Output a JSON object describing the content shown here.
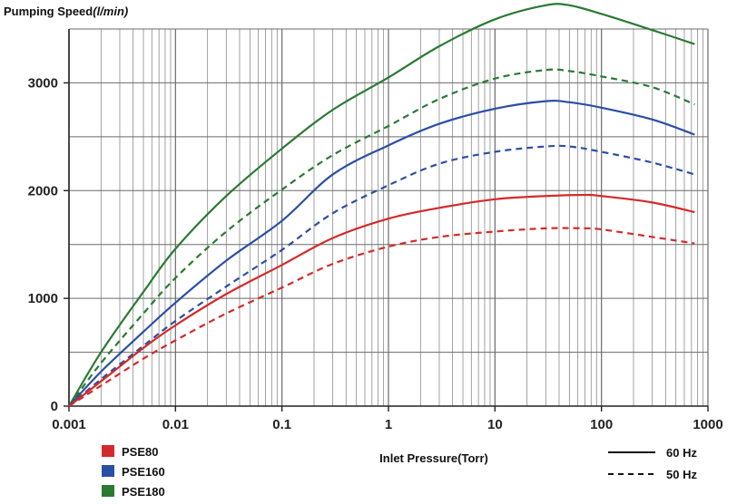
{
  "chart_data": {
    "type": "line",
    "ylabel": "Pumping Speed",
    "ylabel_unit": "(l/min)",
    "xlabel": "Inlet Pressure(Torr)",
    "x_scale": "log",
    "xlim": [
      0.001,
      1000
    ],
    "ylim": [
      0,
      3500
    ],
    "grid": true,
    "x_ticks": [
      {
        "value": 0.001,
        "label": "0.001"
      },
      {
        "value": 0.01,
        "label": "0.01"
      },
      {
        "value": 0.1,
        "label": "0.1"
      },
      {
        "value": 1,
        "label": "1"
      },
      {
        "value": 10,
        "label": "10"
      },
      {
        "value": 100,
        "label": "100"
      },
      {
        "value": 1000,
        "label": "1000"
      }
    ],
    "y_ticks": [
      {
        "value": 0,
        "label": "0"
      },
      {
        "value": 1000,
        "label": "1000"
      },
      {
        "value": 2000,
        "label": "2000"
      },
      {
        "value": 3000,
        "label": "3000"
      }
    ],
    "model_legend": [
      {
        "label": "PSE80",
        "color": "#d42a2a"
      },
      {
        "label": "PSE160",
        "color": "#2b4fa3"
      },
      {
        "label": "PSE180",
        "color": "#2a7a33"
      }
    ],
    "style_legend": [
      {
        "label": "60 Hz",
        "dash": "solid"
      },
      {
        "label": "50 Hz",
        "dash": "dashed"
      }
    ],
    "series": [
      {
        "model": "PSE180",
        "freq": "60 Hz",
        "color": "#2a7a33",
        "dash": "solid",
        "points": [
          [
            0.001,
            0
          ],
          [
            0.002,
            500
          ],
          [
            0.005,
            1060
          ],
          [
            0.01,
            1460
          ],
          [
            0.03,
            1950
          ],
          [
            0.1,
            2390
          ],
          [
            0.3,
            2750
          ],
          [
            1,
            3050
          ],
          [
            3,
            3340
          ],
          [
            10,
            3590
          ],
          [
            30,
            3720
          ],
          [
            50,
            3720
          ],
          [
            100,
            3640
          ],
          [
            300,
            3490
          ],
          [
            750,
            3360
          ]
        ]
      },
      {
        "model": "PSE180",
        "freq": "50 Hz",
        "color": "#2a7a33",
        "dash": "dashed",
        "points": [
          [
            0.001,
            0
          ],
          [
            0.002,
            400
          ],
          [
            0.005,
            860
          ],
          [
            0.01,
            1190
          ],
          [
            0.03,
            1620
          ],
          [
            0.1,
            2010
          ],
          [
            0.3,
            2330
          ],
          [
            1,
            2600
          ],
          [
            3,
            2850
          ],
          [
            10,
            3040
          ],
          [
            30,
            3120
          ],
          [
            50,
            3110
          ],
          [
            100,
            3060
          ],
          [
            300,
            2960
          ],
          [
            750,
            2800
          ]
        ]
      },
      {
        "model": "PSE160",
        "freq": "60 Hz",
        "color": "#2b4fa3",
        "dash": "solid",
        "points": [
          [
            0.001,
            0
          ],
          [
            0.002,
            320
          ],
          [
            0.005,
            690
          ],
          [
            0.01,
            960
          ],
          [
            0.03,
            1350
          ],
          [
            0.1,
            1720
          ],
          [
            0.3,
            2150
          ],
          [
            1,
            2420
          ],
          [
            3,
            2620
          ],
          [
            10,
            2760
          ],
          [
            30,
            2830
          ],
          [
            50,
            2820
          ],
          [
            100,
            2770
          ],
          [
            300,
            2660
          ],
          [
            750,
            2520
          ]
        ]
      },
      {
        "model": "PSE160",
        "freq": "50 Hz",
        "color": "#2b4fa3",
        "dash": "dashed",
        "points": [
          [
            0.001,
            0
          ],
          [
            0.002,
            250
          ],
          [
            0.005,
            560
          ],
          [
            0.01,
            790
          ],
          [
            0.03,
            1110
          ],
          [
            0.1,
            1450
          ],
          [
            0.3,
            1790
          ],
          [
            1,
            2050
          ],
          [
            3,
            2250
          ],
          [
            10,
            2360
          ],
          [
            30,
            2410
          ],
          [
            50,
            2410
          ],
          [
            100,
            2360
          ],
          [
            300,
            2260
          ],
          [
            750,
            2150
          ]
        ]
      },
      {
        "model": "PSE80",
        "freq": "60 Hz",
        "color": "#d42a2a",
        "dash": "solid",
        "points": [
          [
            0.001,
            0
          ],
          [
            0.002,
            230
          ],
          [
            0.005,
            540
          ],
          [
            0.01,
            750
          ],
          [
            0.03,
            1040
          ],
          [
            0.1,
            1310
          ],
          [
            0.3,
            1560
          ],
          [
            1,
            1740
          ],
          [
            3,
            1840
          ],
          [
            10,
            1920
          ],
          [
            30,
            1950
          ],
          [
            70,
            1960
          ],
          [
            100,
            1950
          ],
          [
            300,
            1890
          ],
          [
            750,
            1800
          ]
        ]
      },
      {
        "model": "PSE80",
        "freq": "50 Hz",
        "color": "#d42a2a",
        "dash": "dashed",
        "points": [
          [
            0.001,
            0
          ],
          [
            0.002,
            190
          ],
          [
            0.005,
            440
          ],
          [
            0.01,
            610
          ],
          [
            0.03,
            860
          ],
          [
            0.1,
            1100
          ],
          [
            0.3,
            1320
          ],
          [
            1,
            1480
          ],
          [
            3,
            1570
          ],
          [
            10,
            1620
          ],
          [
            30,
            1650
          ],
          [
            70,
            1650
          ],
          [
            100,
            1640
          ],
          [
            300,
            1570
          ],
          [
            750,
            1510
          ]
        ]
      }
    ]
  }
}
